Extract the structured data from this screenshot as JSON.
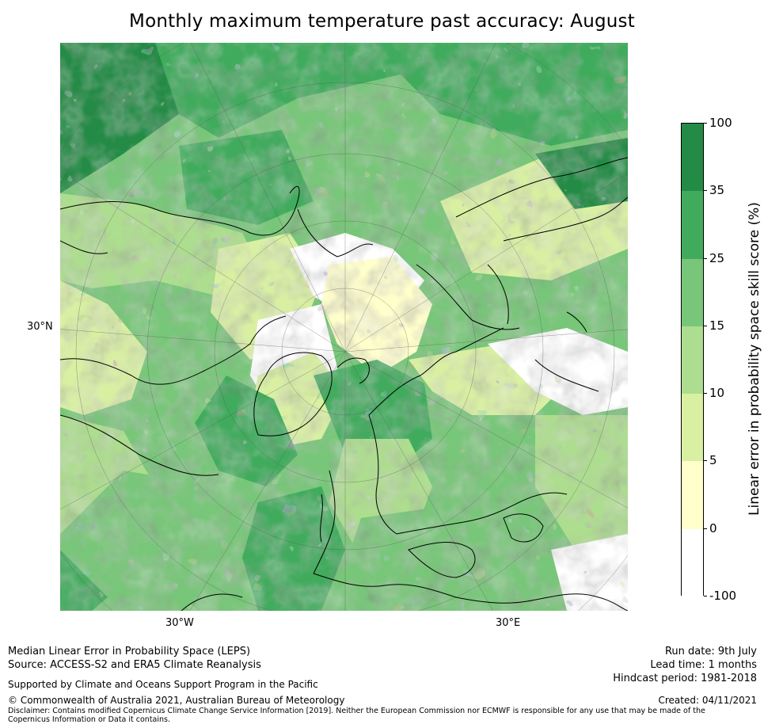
{
  "title": "Monthly maximum temperature past accuracy: August",
  "map": {
    "lat_labels": [
      "30°N"
    ],
    "lon_labels": [
      "30°W",
      "30°E"
    ]
  },
  "colorbar": {
    "label": "Linear error in probability space skill score (%)",
    "ticks": [
      "100",
      "35",
      "25",
      "15",
      "10",
      "5",
      "0",
      "-100"
    ],
    "bands": [
      {
        "range": "35 to 100",
        "color": "#238b45"
      },
      {
        "range": "25 to 35",
        "color": "#41ab5d"
      },
      {
        "range": "15 to 25",
        "color": "#78c679"
      },
      {
        "range": "10 to 15",
        "color": "#addd8e"
      },
      {
        "range": "5 to 10",
        "color": "#d9f0a3"
      },
      {
        "range": "0 to 5",
        "color": "#ffffcc"
      },
      {
        "range": "-100 to 0",
        "color": "#ffffff"
      }
    ]
  },
  "footer": {
    "left_line1": "Median Linear Error in Probability Space (LEPS)",
    "left_line2": "Source: ACCESS-S2 and ERA5 Climate Reanalysis",
    "supported": "Supported by Climate and Oceans Support Program in the Pacific",
    "copyright": "© Commonwealth of Australia 2021, Australian Bureau of Meteorology",
    "disclaimer": "Disclaimer: Contains modified Copernicus Climate Change Service Information [2019]. Neither the European Commission nor ECMWF is responsible for any use that may be made of the Copernicus Information or Data it contains.",
    "run_date": "Run date: 9th July",
    "lead_time": "Lead time: 1 months",
    "hindcast": "Hindcast period: 1981-2018",
    "created": "Created: 04/11/2021"
  }
}
